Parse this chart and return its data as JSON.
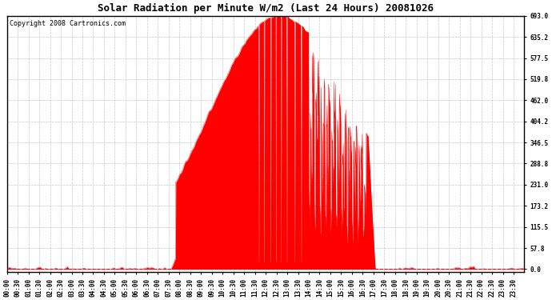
{
  "title": "Solar Radiation per Minute W/m2 (Last 24 Hours) 20081026",
  "copyright_text": "Copyright 2008 Cartronics.com",
  "y_max": 693.0,
  "y_ticks": [
    0.0,
    57.8,
    115.5,
    173.2,
    231.0,
    288.8,
    346.5,
    404.2,
    462.0,
    519.8,
    577.5,
    635.2,
    693.0
  ],
  "bar_color": "#FF0000",
  "fill_color": "#FF0000",
  "background_color": "#FFFFFF",
  "plot_bg_color": "#FFFFFF",
  "grid_color": "#C8C8C8",
  "dashed_line_color": "#FF0000",
  "title_fontsize": 9,
  "copyright_fontsize": 6,
  "tick_fontsize": 5.5
}
